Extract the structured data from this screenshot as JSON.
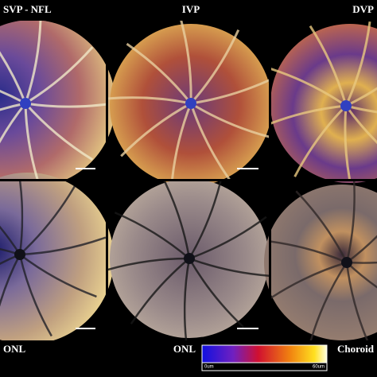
{
  "top_labels": [
    "SVP - NFL",
    "IVP",
    "DVP"
  ],
  "bottom_labels": [
    "ONL",
    "ONL",
    "Choroid"
  ],
  "colorbar": {
    "min_label": "0um",
    "max_label": "60um"
  }
}
